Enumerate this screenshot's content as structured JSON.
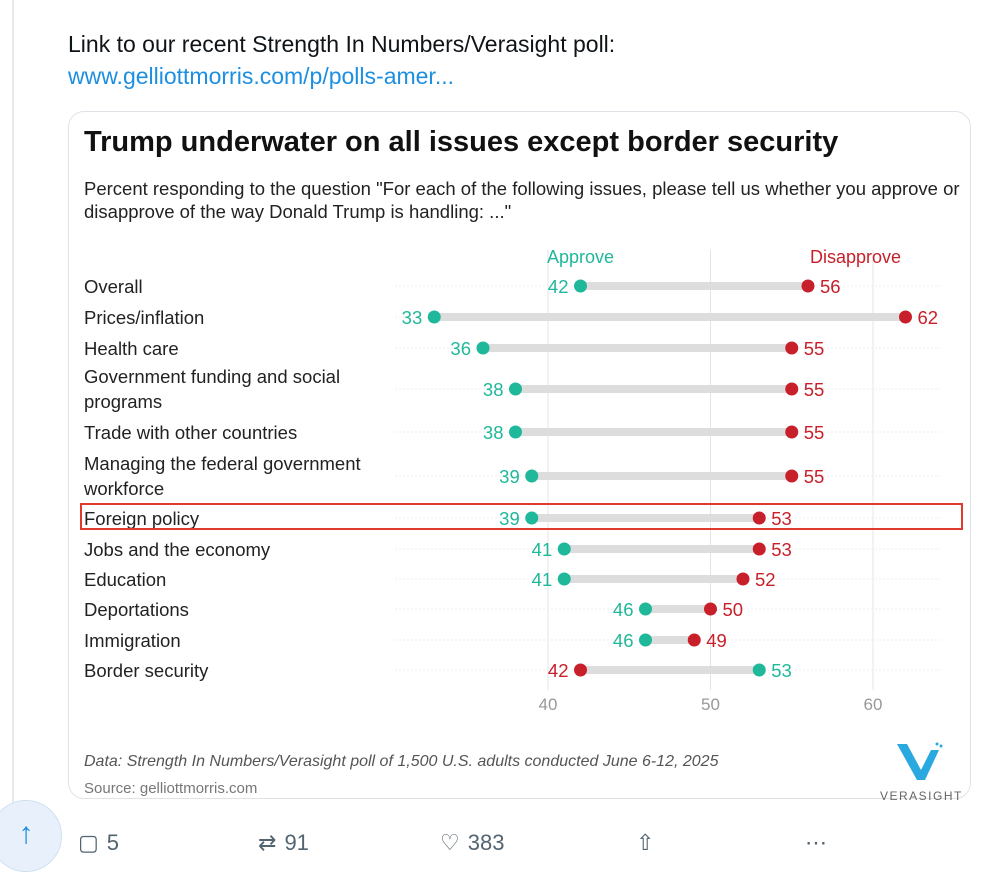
{
  "tweet": {
    "intro": "Link to our recent Strength In Numbers/Verasight poll:",
    "link": "www.gelliottmorris.com/p/polls-amer...",
    "actions": {
      "replies": "5",
      "reposts": "91",
      "likes": "383"
    }
  },
  "colors": {
    "approve": "#1fb89a",
    "disapprove": "#c8202a",
    "highlight": "#e03a2e",
    "link": "#1d8fe0"
  },
  "chart_data": {
    "type": "dumbbell",
    "title": "Trump underwater on all issues except border security",
    "subtitle": "Percent responding to the question \"For each of the following issues, please tell us whether you approve or disapprove of the way Donald Trump is handling: ...\"",
    "legend": {
      "approve": "Approve",
      "disapprove": "Disapprove"
    },
    "xlim": [
      30,
      63
    ],
    "xticks": [
      40,
      50,
      60
    ],
    "grid": true,
    "categories": [
      "Overall",
      "Prices/inflation",
      "Health care",
      "Government funding and social programs",
      "Trade with other countries",
      "Managing the federal government workforce",
      "Foreign policy",
      "Jobs and the economy",
      "Education",
      "Deportations",
      "Immigration",
      "Border security"
    ],
    "series": [
      {
        "name": "Approve",
        "values": [
          42,
          33,
          36,
          38,
          38,
          39,
          39,
          41,
          41,
          46,
          46,
          53
        ]
      },
      {
        "name": "Disapprove",
        "values": [
          56,
          62,
          55,
          55,
          55,
          55,
          53,
          53,
          52,
          50,
          49,
          42
        ]
      }
    ],
    "highlighted": "Foreign policy",
    "footnote": "Data: Strength In Numbers/Verasight poll of 1,500 U.S. adults conducted June 6-12, 2025",
    "source": "Source: gelliottmorris.com",
    "logo": "VERASIGHT"
  }
}
